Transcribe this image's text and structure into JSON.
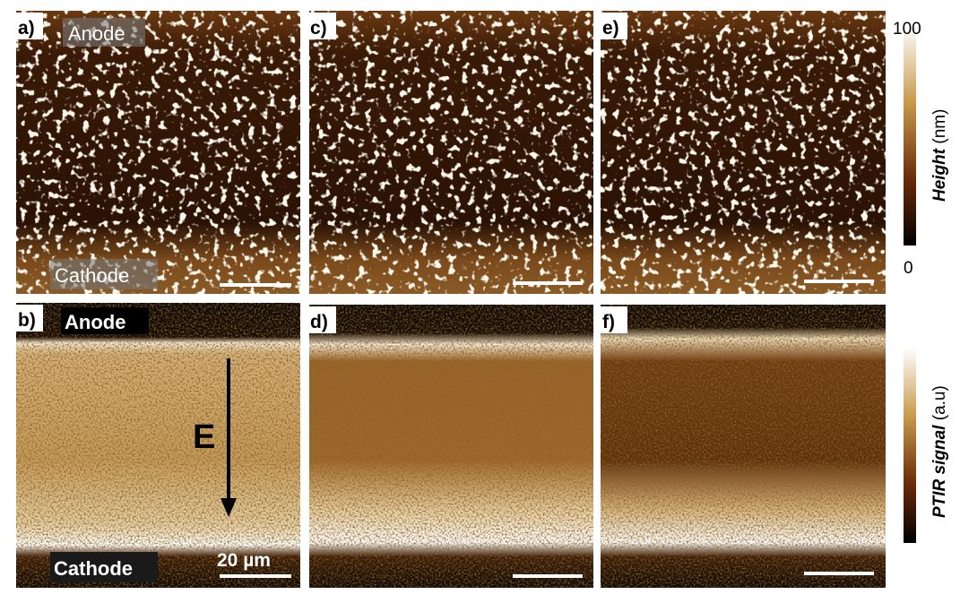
{
  "panels": [
    {
      "label": "a)",
      "top_text": "Anode",
      "bottom_text": "Cathode"
    },
    {
      "label": "b)",
      "top_text": "Anode",
      "bottom_text": "Cathode",
      "field_label": "E",
      "scale_label": "20 µm"
    },
    {
      "label": "c)"
    },
    {
      "label": "d)"
    },
    {
      "label": "e)"
    },
    {
      "label": "f)"
    }
  ],
  "colorbars": [
    {
      "max_label": "100",
      "min_label": "0",
      "title": "Height",
      "unit": "(nm)"
    },
    {
      "title": "PTIR signal",
      "unit": "(a.u)"
    }
  ]
}
